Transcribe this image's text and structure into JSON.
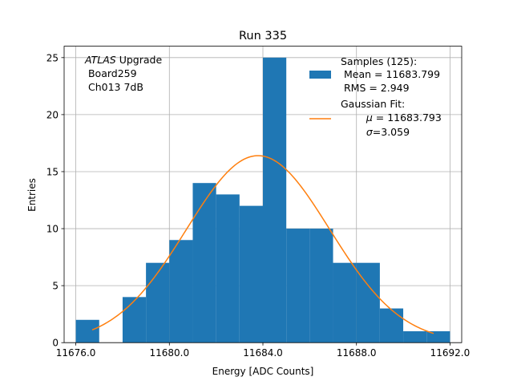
{
  "chart_data": {
    "type": "bar",
    "title": "Run 335",
    "xlabel": "Energy [ADC Counts]",
    "ylabel": "Entries",
    "xlim": [
      11675.5,
      11692.5
    ],
    "ylim": [
      0,
      26
    ],
    "grid": true,
    "x_ticks": [
      11676.0,
      11680.0,
      11684.0,
      11688.0,
      11692.0
    ],
    "x_tick_labels": [
      "11676.0",
      "11680.0",
      "11684.0",
      "11688.0",
      "11692.0"
    ],
    "y_ticks": [
      0,
      5,
      10,
      15,
      20,
      25
    ],
    "y_tick_labels": [
      "0",
      "5",
      "10",
      "15",
      "20",
      "25"
    ],
    "histogram": {
      "bin_width": 1,
      "bin_starts": [
        11676,
        11677,
        11678,
        11679,
        11680,
        11681,
        11682,
        11683,
        11684,
        11685,
        11686,
        11687,
        11688,
        11689,
        11690,
        11691
      ],
      "counts": [
        2,
        0,
        4,
        7,
        9,
        14,
        13,
        12,
        25,
        10,
        10,
        7,
        7,
        3,
        1,
        1
      ],
      "color": "#1f77b4"
    },
    "fit": {
      "type": "gaussian",
      "mu": 11683.793,
      "sigma": 3.059,
      "amplitude": 16.4,
      "x_range": [
        11676.7,
        11691.3
      ],
      "color": "#ff7f0e"
    },
    "annotation": {
      "italic": "ATLAS",
      "rest": " Upgrade",
      "lines": [
        " Board259",
        " Ch013 7dB"
      ]
    },
    "legend": {
      "placement": "top-right",
      "samples": [
        "Samples (125):",
        " Mean = 11683.799",
        " RMS = 2.949"
      ],
      "fit_title": "Gaussian Fit:",
      "fit_mu_symbol": "μ",
      "fit_mu_rest": " = 11683.793",
      "fit_sigma_symbol": "σ",
      "fit_sigma_rest": "=3.059"
    }
  }
}
